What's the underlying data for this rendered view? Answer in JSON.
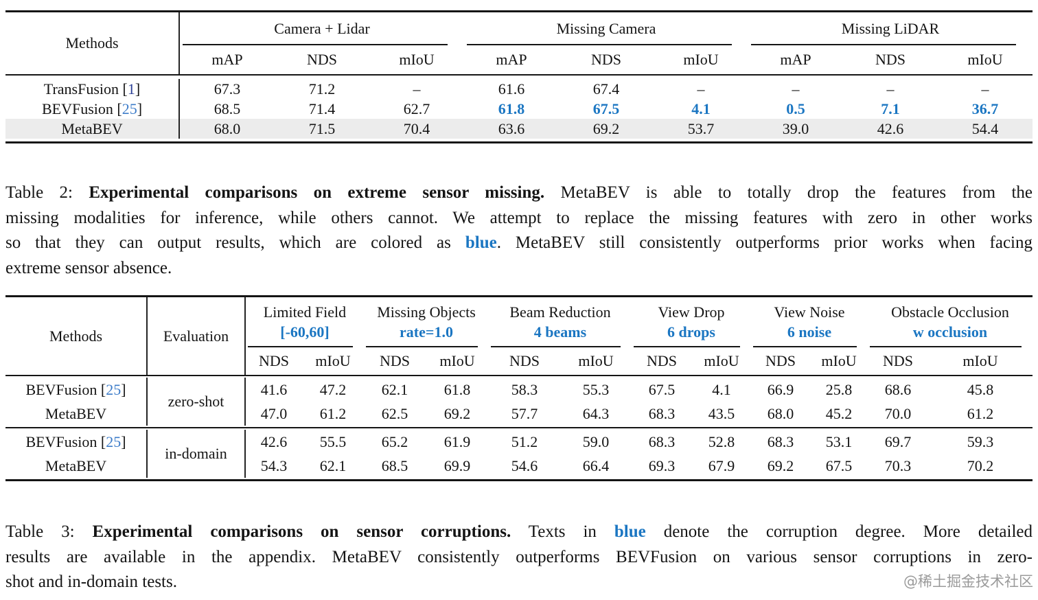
{
  "colors": {
    "accent_blue": "#1b76c2",
    "cite_blue": "#3d7cc9",
    "cite_dark_blue": "#2b3f96",
    "highlight_row": "#ececec",
    "rule_black": "#151515",
    "watermark_gray": "#9a9a9a"
  },
  "table2": {
    "methods_header": "Methods",
    "groups": [
      {
        "title": "Camera + Lidar"
      },
      {
        "title": "Missing Camera"
      },
      {
        "title": "Missing LiDAR"
      }
    ],
    "subheaders": [
      "mAP",
      "NDS",
      "mIoU",
      "mAP",
      "NDS",
      "mIoU",
      "mAP",
      "NDS",
      "mIoU"
    ],
    "rows": [
      {
        "method": "TransFusion [",
        "cite": "1",
        "bracket": "]",
        "values": [
          "67.3",
          "71.2",
          "–",
          "61.6",
          "67.4",
          "–",
          "–",
          "–",
          "–"
        ]
      },
      {
        "method": "BEVFusion [",
        "cite": "25",
        "bracket": "]",
        "values": [
          "68.5",
          "71.4",
          "62.7",
          "61.8",
          "67.5",
          "4.1",
          "0.5",
          "7.1",
          "36.7"
        ]
      },
      {
        "method": "MetaBEV",
        "values": [
          "68.0",
          "71.5",
          "70.4",
          "63.6",
          "69.2",
          "53.7",
          "39.0",
          "42.6",
          "54.4"
        ]
      }
    ]
  },
  "caption2": {
    "l1_prefix": "Table 2: ",
    "l1_bold": "Experimental comparisons on extreme sensor missing.",
    "l1_rest": " MetaBEV is able to totally drop the features from the",
    "l2": "missing modalities for inference, while others cannot. We attempt to replace the missing features with zero in other works",
    "l3_pre": "so that they can output results, which are colored as ",
    "l3_blue": "blue",
    "l3_post": ". MetaBEV still consistently outperforms prior works when facing",
    "l4": "extreme sensor absence."
  },
  "table3": {
    "methods_header": "Methods",
    "evaluation_header": "Evaluation",
    "groups": [
      {
        "title": "Limited Field",
        "param": "[-60,60]"
      },
      {
        "title": "Missing Objects",
        "param": "rate=1.0"
      },
      {
        "title": "Beam Reduction",
        "param": "4 beams"
      },
      {
        "title": "View Drop",
        "param": "6 drops"
      },
      {
        "title": "View Noise",
        "param": "6 noise"
      },
      {
        "title": "Obstacle Occlusion",
        "param": "w occlusion"
      }
    ],
    "subheaders": [
      "NDS",
      "mIoU",
      "NDS",
      "mIoU",
      "NDS",
      "mIoU",
      "NDS",
      "mIoU",
      "NDS",
      "mIoU",
      "NDS",
      "mIoU"
    ],
    "eval_groups": [
      {
        "evaluation": "zero-shot",
        "rows": [
          {
            "method": "BEVFusion [",
            "cite": "25",
            "bracket": "]",
            "values": [
              "41.6",
              "47.2",
              "62.1",
              "61.8",
              "58.3",
              "55.3",
              "67.5",
              "4.1",
              "66.9",
              "25.8",
              "68.6",
              "45.8"
            ]
          },
          {
            "method": "MetaBEV",
            "values": [
              "47.0",
              "61.2",
              "62.5",
              "69.2",
              "57.7",
              "64.3",
              "68.3",
              "43.5",
              "68.0",
              "45.2",
              "70.0",
              "61.2"
            ]
          }
        ]
      },
      {
        "evaluation": "in-domain",
        "rows": [
          {
            "method": "BEVFusion [",
            "cite": "25",
            "bracket": "]",
            "values": [
              "42.6",
              "55.5",
              "65.2",
              "61.9",
              "51.2",
              "59.0",
              "68.3",
              "52.8",
              "68.3",
              "53.1",
              "69.7",
              "59.3"
            ]
          },
          {
            "method": "MetaBEV",
            "values": [
              "54.3",
              "62.1",
              "68.5",
              "69.9",
              "54.6",
              "66.4",
              "69.3",
              "67.9",
              "69.2",
              "67.5",
              "70.3",
              "70.2"
            ]
          }
        ]
      }
    ]
  },
  "caption3": {
    "l1_prefix": "Table 3: ",
    "l1_bold": "Experimental comparisons on sensor corruptions.",
    "l1_mid": " Texts in ",
    "l1_blue": "blue",
    "l1_rest": " denote the corruption degree. More detailed",
    "l2": "results are available in the appendix. MetaBEV consistently outperforms BEVFusion on various sensor corruptions in zero-",
    "l3": "shot and in-domain tests."
  },
  "watermark": "@稀土掘金技术社区"
}
